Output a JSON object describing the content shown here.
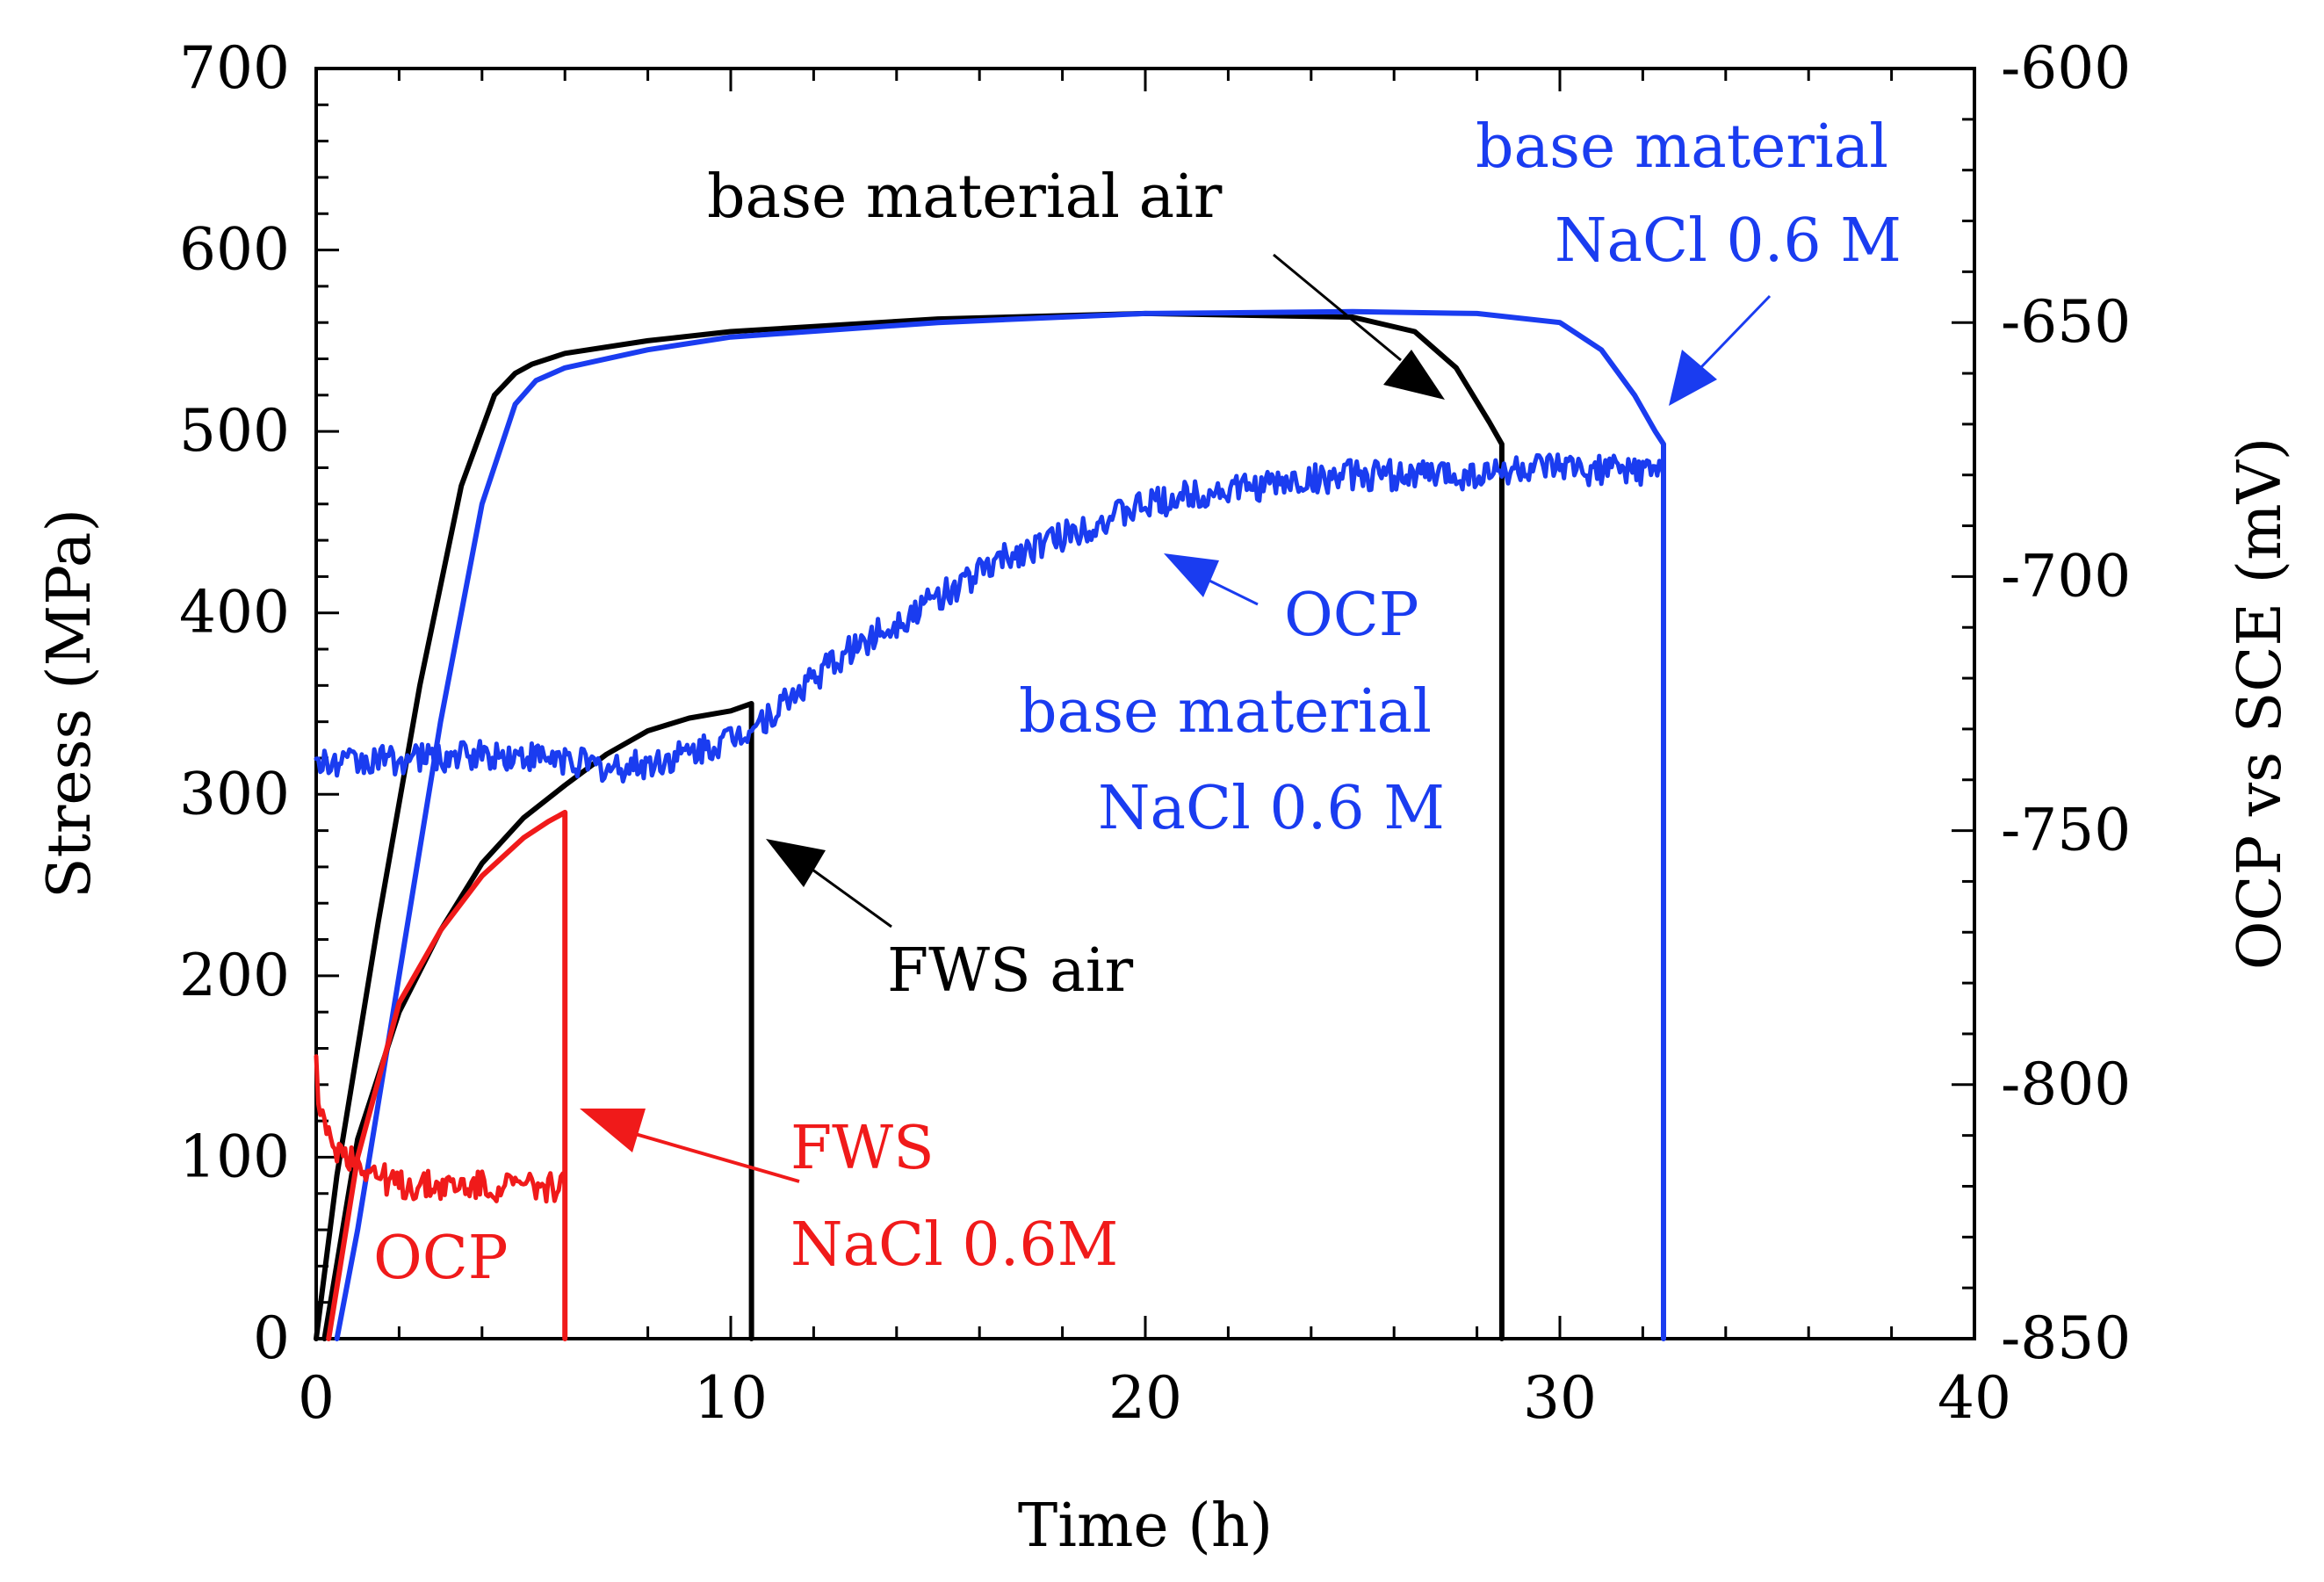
{
  "chart_data": {
    "type": "line",
    "title": "",
    "xlabel": "Time (h)",
    "ylabel_left": "Stress (MPa)",
    "ylabel_right": "OCP vs SCE (mV)",
    "xlim": [
      0,
      40
    ],
    "ylim_left": [
      0,
      700
    ],
    "ylim_right": [
      -850,
      -600
    ],
    "x_ticks": [
      "0",
      "10",
      "20",
      "30",
      "40"
    ],
    "y_left_ticks": [
      "0",
      "100",
      "200",
      "300",
      "400",
      "500",
      "600",
      "700"
    ],
    "y_right_ticks": [
      "-850",
      "-800",
      "-750",
      "-700",
      "-650",
      "-600"
    ],
    "grid": false,
    "colors": {
      "black": "#000000",
      "blue": "#1a3cf0",
      "red": "#f01a1a",
      "steel": "#4a6a9a"
    },
    "series": [
      {
        "name": "base material air (stress)",
        "axis": "left",
        "color": "#000000",
        "x": [
          0,
          0.5,
          1.5,
          2.5,
          3.5,
          4.3,
          4.8,
          5.2,
          6,
          8,
          10,
          15,
          20,
          25,
          26.5,
          27.5,
          28.3,
          28.6,
          28.6
        ],
        "y": [
          0,
          90,
          230,
          360,
          470,
          520,
          532,
          537,
          543,
          550,
          555,
          562,
          565,
          563,
          555,
          535,
          505,
          493,
          0
        ]
      },
      {
        "name": "base material NaCl 0.6 M (stress)",
        "axis": "left",
        "color": "#1a3cf0",
        "x": [
          0.5,
          1,
          2,
          3,
          4,
          4.8,
          5.3,
          6,
          8,
          10,
          15,
          20,
          25,
          28,
          30,
          31,
          31.8,
          32.3,
          32.5,
          32.5
        ],
        "y": [
          0,
          60,
          200,
          340,
          460,
          515,
          528,
          535,
          545,
          552,
          560,
          565,
          566,
          565,
          560,
          545,
          520,
          500,
          493,
          0
        ]
      },
      {
        "name": "FWS air (stress)",
        "axis": "left",
        "color": "#000000",
        "x": [
          0.2,
          1,
          2,
          3,
          4,
          5,
          6,
          7,
          8,
          9,
          10,
          10.5,
          10.5
        ],
        "y": [
          0,
          110,
          180,
          225,
          262,
          287,
          305,
          322,
          335,
          342,
          346,
          350,
          0
        ]
      },
      {
        "name": "FWS NaCl 0.6M (stress)",
        "axis": "left",
        "color": "#f01a1a",
        "x": [
          0.3,
          1,
          2,
          3,
          4,
          5,
          5.6,
          6.0,
          6.0
        ],
        "y": [
          0,
          100,
          185,
          225,
          255,
          276,
          285,
          290,
          0
        ]
      },
      {
        "name": "OCP base material NaCl 0.6 M",
        "axis": "right",
        "color": "#1a3cf0",
        "x": [
          0,
          2,
          4,
          6,
          7,
          8,
          9,
          10,
          11,
          12,
          13,
          14,
          15,
          16,
          17,
          18,
          19,
          20,
          21,
          22,
          23,
          24,
          25,
          26,
          27,
          28,
          29,
          30,
          31,
          32,
          32.3,
          32.5,
          32.5
        ],
        "y": [
          -737,
          -736,
          -735,
          -736,
          -738,
          -737,
          -735,
          -732,
          -727,
          -720,
          -714,
          -709,
          -704,
          -699,
          -695,
          -692,
          -689,
          -686,
          -684,
          -683,
          -682,
          -681,
          -680,
          -680,
          -680,
          -680,
          -679,
          -679,
          -679,
          -679,
          -679,
          -680,
          -850
        ]
      },
      {
        "name": "OCP FWS NaCl 0.6M",
        "axis": "right",
        "color": "#f01a1a",
        "x": [
          0,
          0.1,
          0.3,
          0.6,
          1,
          1.5,
          2,
          3,
          4,
          5,
          6
        ],
        "y": [
          -796,
          -806,
          -811,
          -813,
          -815,
          -818,
          -820,
          -820,
          -820,
          -820,
          -820
        ]
      }
    ],
    "annotations": [
      {
        "id": "ann1",
        "lines": [
          "base material air"
        ],
        "color": "#000000"
      },
      {
        "id": "ann2",
        "lines": [
          "base material",
          "NaCl 0.6 M"
        ],
        "color": "#1a3cf0"
      },
      {
        "id": "ann3",
        "lines": [
          "OCP",
          "base material",
          "NaCl 0.6 M"
        ],
        "color": "#1a3cf0"
      },
      {
        "id": "ann4",
        "lines": [
          "FWS air"
        ],
        "color": "#000000"
      },
      {
        "id": "ann5",
        "lines": [
          "FWS",
          "NaCl 0.6M"
        ],
        "color": "#f01a1a"
      },
      {
        "id": "ann6",
        "lines": [
          "OCP"
        ],
        "color": "#f01a1a"
      }
    ]
  }
}
